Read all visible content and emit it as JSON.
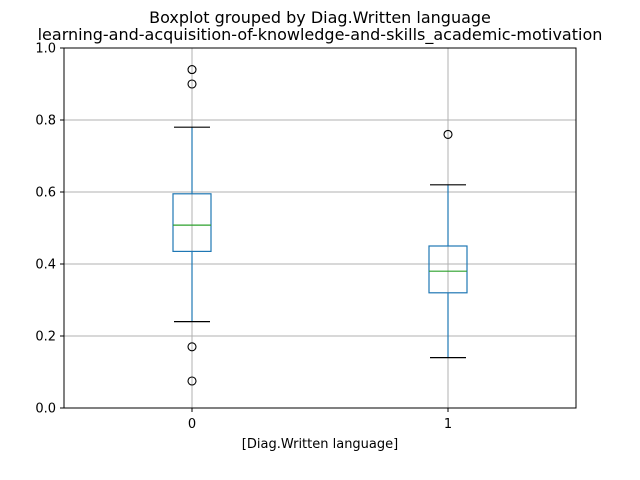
{
  "chart_data": {
    "type": "box",
    "title": "Boxplot grouped by Diag.Written language",
    "subtitle": "learning-and-acquisition-of-knowledge-and-skills_academic-motivation",
    "xlabel": "[Diag.Written language]",
    "ylabel": "",
    "ylim": [
      0.0,
      1.0
    ],
    "yticks": [
      "0.0",
      "0.2",
      "0.4",
      "0.6",
      "0.8",
      "1.0"
    ],
    "grid": true,
    "categories": [
      "0",
      "1"
    ],
    "boxes": [
      {
        "category": "0",
        "whisker_low": 0.24,
        "q1": 0.435,
        "median": 0.508,
        "q3": 0.595,
        "whisker_high": 0.78,
        "outliers": [
          0.94,
          0.9,
          0.17,
          0.075
        ]
      },
      {
        "category": "1",
        "whisker_low": 0.14,
        "q1": 0.32,
        "median": 0.38,
        "q3": 0.45,
        "whisker_high": 0.62,
        "outliers": [
          0.76
        ]
      }
    ],
    "colors": {
      "box": "#1f77b4",
      "median": "#2ca02c",
      "whisker_cap": "#000000",
      "grid": "#b0b0b0"
    }
  }
}
